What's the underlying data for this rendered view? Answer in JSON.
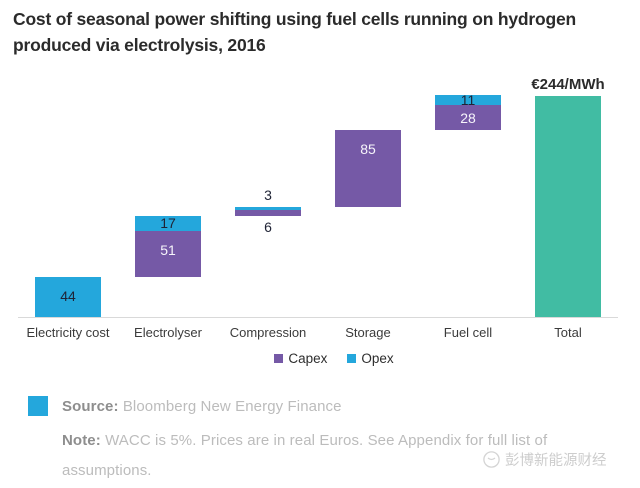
{
  "title": "Cost of seasonal power shifting using fuel cells running on hydrogen produced via electrolysis, 2016",
  "chart_data": {
    "type": "bar",
    "subtype": "waterfall-stacked",
    "title": "Cost of seasonal power shifting using fuel cells running on hydrogen produced via electrolysis, 2016",
    "unit": "€/MWh",
    "ylim": [
      0,
      267
    ],
    "grid": false,
    "legend_position": "bottom-center",
    "categories": [
      "Electricity cost",
      "Electrolyser",
      "Compression",
      "Storage",
      "Fuel cell",
      "Total"
    ],
    "series": [
      {
        "name": "Capex",
        "values": [
          0,
          51,
          6,
          85,
          28,
          0
        ]
      },
      {
        "name": "Opex",
        "values": [
          44,
          17,
          3,
          0,
          11,
          0
        ]
      },
      {
        "name": "Total",
        "values": [
          0,
          0,
          0,
          0,
          0,
          244
        ]
      }
    ],
    "series_colors": {
      "Capex": "#7559a6",
      "Opex": "#24a7dc",
      "Total": "#41bca3"
    },
    "total_annotation": "€244/MWh",
    "legend": [
      {
        "label": "Capex",
        "color": "#7559a6"
      },
      {
        "label": "Opex",
        "color": "#24a7dc"
      }
    ],
    "columns": [
      {
        "category": "Electricity cost",
        "base": 0,
        "segments": [
          {
            "series": "Opex",
            "value": 44,
            "label_pos": "top",
            "label_color": "dark"
          }
        ]
      },
      {
        "category": "Electrolyser",
        "base": 44,
        "segments": [
          {
            "series": "Capex",
            "value": 51,
            "label_pos": "top",
            "label_color": "white"
          },
          {
            "series": "Opex",
            "value": 17,
            "label_pos": "center",
            "label_color": "dark"
          }
        ]
      },
      {
        "category": "Compression",
        "base": 112,
        "segments": [
          {
            "series": "Capex",
            "value": 6,
            "label_pos": "below",
            "label_color": "dark"
          },
          {
            "series": "Opex",
            "value": 3,
            "label_pos": "above",
            "label_color": "dark"
          }
        ]
      },
      {
        "category": "Storage",
        "base": 121,
        "segments": [
          {
            "series": "Capex",
            "value": 85,
            "label_pos": "top",
            "label_color": "white"
          }
        ]
      },
      {
        "category": "Fuel cell",
        "base": 206,
        "segments": [
          {
            "series": "Capex",
            "value": 28,
            "label_pos": "center",
            "label_color": "white"
          },
          {
            "series": "Opex",
            "value": 11,
            "label_pos": "center",
            "label_color": "dark"
          }
        ]
      },
      {
        "category": "Total",
        "base": 0,
        "segments": [
          {
            "series": "Total",
            "value": 244,
            "label_pos": "none",
            "label_color": "white"
          }
        ]
      }
    ]
  },
  "footer": {
    "bullet_color": "#24a7dc",
    "source_label": "Source:",
    "source_text": " Bloomberg New Energy Finance",
    "note_label": "Note:",
    "note_text": " WACC is 5%. Prices are in real Euros. See Appendix for full list of assumptions."
  },
  "watermark": {
    "text": "彭博新能源财经"
  }
}
